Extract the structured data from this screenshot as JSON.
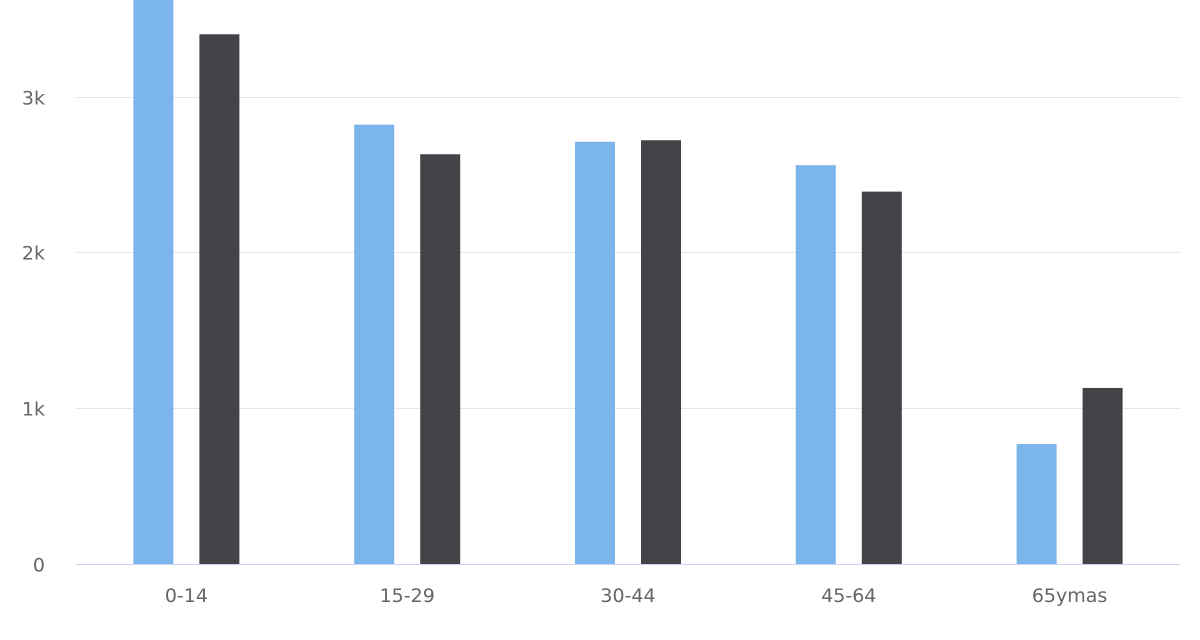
{
  "chart_data": {
    "type": "bar",
    "title": "",
    "xlabel": "",
    "ylabel": "",
    "categories": [
      "0-14",
      "15-29",
      "30-44",
      "45-64",
      "65ymas"
    ],
    "series": [
      {
        "values": [
          3620,
          2820,
          2710,
          2560,
          770
        ],
        "color": "#7cb5ec"
      },
      {
        "values": [
          3400,
          2630,
          2720,
          2390,
          1130
        ],
        "color": "#434348"
      }
    ],
    "ylim": [
      0,
      3620
    ],
    "yticks": [
      {
        "value": 0,
        "label": "0"
      },
      {
        "value": 1000,
        "label": "1k"
      },
      {
        "value": 2000,
        "label": "2k"
      },
      {
        "value": 3000,
        "label": "3k"
      }
    ],
    "grid": true,
    "colors": {
      "grid": "#e6e6e6",
      "axis": "#ccd6eb",
      "label": "#666666"
    }
  }
}
